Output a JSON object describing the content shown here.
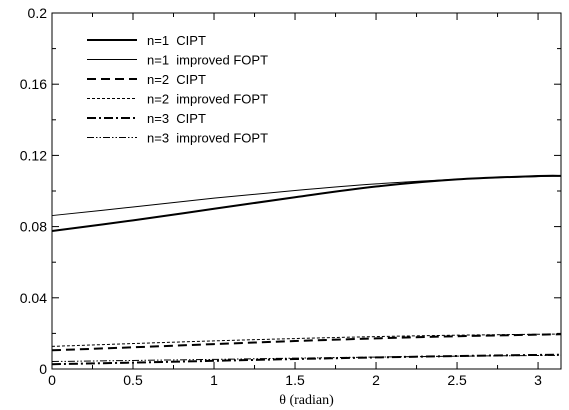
{
  "chart_data": {
    "type": "line",
    "title": "",
    "xlabel": "θ (radian)",
    "ylabel": "",
    "xlim": [
      0,
      3.1416
    ],
    "ylim": [
      0,
      0.2
    ],
    "x_ticks": [
      0,
      0.5,
      1,
      1.5,
      2,
      2.5,
      3
    ],
    "x_tick_labels": [
      "0",
      "0.5",
      "1",
      "1.5",
      "2",
      "2.5",
      "3"
    ],
    "y_ticks": [
      0,
      0.04,
      0.08,
      0.12,
      0.16,
      0.2
    ],
    "y_tick_labels": [
      "0",
      "0.04",
      "0.08",
      "0.12",
      "0.16",
      "0.2"
    ],
    "grid": false,
    "legend_position": "top-left",
    "series": [
      {
        "name": "n=1  CIPT",
        "style": "solid-thick",
        "x": [
          0,
          0.5,
          1,
          1.5,
          2,
          2.5,
          3,
          3.1416
        ],
        "y": [
          0.0775,
          0.0835,
          0.09,
          0.0965,
          0.1025,
          0.1065,
          0.1084,
          0.1085
        ]
      },
      {
        "name": "n=1  improved FOPT",
        "style": "solid-thin",
        "x": [
          0,
          0.5,
          1,
          1.5,
          2,
          2.5,
          3,
          3.1416
        ],
        "y": [
          0.0862,
          0.091,
          0.096,
          0.1003,
          0.104,
          0.1066,
          0.1081,
          0.1084
        ]
      },
      {
        "name": "n=2  CIPT",
        "style": "dash-thick",
        "x": [
          0,
          0.5,
          1,
          1.5,
          2,
          2.5,
          3,
          3.1416
        ],
        "y": [
          0.0105,
          0.0122,
          0.014,
          0.0157,
          0.0172,
          0.0184,
          0.0193,
          0.0195
        ]
      },
      {
        "name": "n=2  improved FOPT",
        "style": "dash-thin",
        "x": [
          0,
          0.5,
          1,
          1.5,
          2,
          2.5,
          3,
          3.1416
        ],
        "y": [
          0.0127,
          0.0143,
          0.0158,
          0.0171,
          0.0182,
          0.019,
          0.0195,
          0.0196
        ]
      },
      {
        "name": "n=3  CIPT",
        "style": "dashdot-thick",
        "x": [
          0,
          0.5,
          1,
          1.5,
          2,
          2.5,
          3,
          3.1416
        ],
        "y": [
          0.0027,
          0.0036,
          0.0046,
          0.0056,
          0.0065,
          0.0073,
          0.0079,
          0.008
        ]
      },
      {
        "name": "n=3  improved FOPT",
        "style": "dashdotdot-thin",
        "x": [
          0,
          0.5,
          1,
          1.5,
          2,
          2.5,
          3,
          3.1416
        ],
        "y": [
          0.0042,
          0.0048,
          0.0054,
          0.0061,
          0.0067,
          0.0072,
          0.0076,
          0.0077
        ]
      }
    ]
  }
}
